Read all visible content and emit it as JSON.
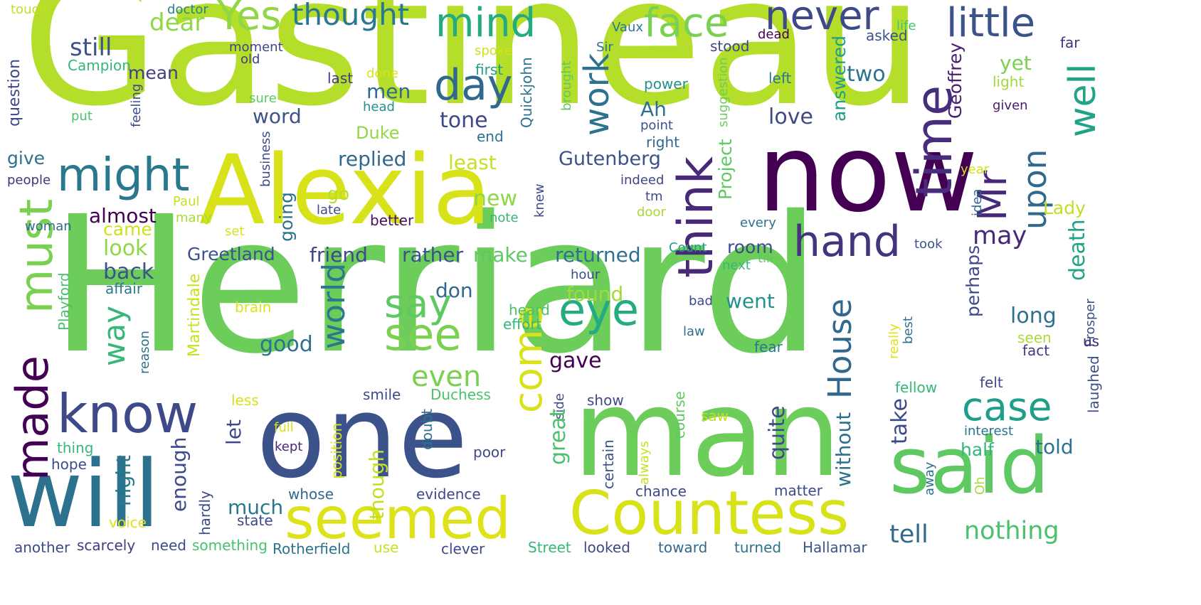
{
  "word_cloud": {
    "words": [
      {
        "text": "Gastineau",
        "color": "#b5de2b"
      },
      {
        "text": "Herriard",
        "color": "#6ccd5a"
      },
      {
        "text": "now",
        "color": "#440154"
      },
      {
        "text": "Alexia",
        "color": "#d8e219"
      },
      {
        "text": "one",
        "color": "#3b528b"
      },
      {
        "text": "man",
        "color": "#6ccd5a"
      },
      {
        "text": "will",
        "color": "#2c728e"
      },
      {
        "text": "said",
        "color": "#5ec962"
      },
      {
        "text": "Countess",
        "color": "#d8e219"
      },
      {
        "text": "seemed",
        "color": "#dde318"
      },
      {
        "text": "know",
        "color": "#3e4989"
      },
      {
        "text": "time",
        "color": "#472d7b"
      },
      {
        "text": "think",
        "color": "#482878"
      },
      {
        "text": "must",
        "color": "#7ad151"
      },
      {
        "text": "made",
        "color": "#440154"
      },
      {
        "text": "might",
        "color": "#2a788e"
      },
      {
        "text": "hand",
        "color": "#46337e"
      },
      {
        "text": "eye",
        "color": "#25ab82"
      },
      {
        "text": "see",
        "color": "#7ad151"
      },
      {
        "text": "say",
        "color": "#5ec962"
      },
      {
        "text": "come",
        "color": "#d8e219"
      },
      {
        "text": "day",
        "color": "#31688e"
      },
      {
        "text": "Yes",
        "color": "#8fd744"
      },
      {
        "text": "mind",
        "color": "#25ab82"
      },
      {
        "text": "face",
        "color": "#7ad151"
      },
      {
        "text": "never",
        "color": "#3e4989"
      },
      {
        "text": "little",
        "color": "#3b528b"
      },
      {
        "text": "thought",
        "color": "#2a788e"
      },
      {
        "text": "Mr",
        "color": "#482878"
      },
      {
        "text": "upon",
        "color": "#31688e"
      },
      {
        "text": "well",
        "color": "#20a386"
      },
      {
        "text": "case",
        "color": "#1f9e89"
      },
      {
        "text": "House",
        "color": "#31688e"
      },
      {
        "text": "world",
        "color": "#2a788e"
      },
      {
        "text": "way",
        "color": "#35b779"
      },
      {
        "text": "work",
        "color": "#2c728e"
      },
      {
        "text": "nothing",
        "color": "#4ac16d"
      },
      {
        "text": "tell",
        "color": "#31688e"
      },
      {
        "text": "even",
        "color": "#7ad151"
      },
      {
        "text": "dear",
        "color": "#8fd744"
      },
      {
        "text": "still",
        "color": "#3b528b"
      },
      {
        "text": "mean",
        "color": "#433e85"
      },
      {
        "text": "question",
        "color": "#3e4989"
      },
      {
        "text": "Campion",
        "color": "#35b779"
      },
      {
        "text": "touch",
        "color": "#c2df23"
      },
      {
        "text": "doctor",
        "color": "#25858e"
      },
      {
        "text": "moment",
        "color": "#414487"
      },
      {
        "text": "old",
        "color": "#433e85"
      },
      {
        "text": "spoke",
        "color": "#d0e11c"
      },
      {
        "text": "first",
        "color": "#1f9e89"
      },
      {
        "text": "done",
        "color": "#d8e219"
      },
      {
        "text": "last",
        "color": "#443983"
      },
      {
        "text": "Sir",
        "color": "#2c728e"
      },
      {
        "text": "Vaux",
        "color": "#2a788e"
      },
      {
        "text": "dead",
        "color": "#440154"
      },
      {
        "text": "stood",
        "color": "#404688"
      },
      {
        "text": "asked",
        "color": "#3b528b"
      },
      {
        "text": "life",
        "color": "#4ac16d"
      },
      {
        "text": "far",
        "color": "#46327e"
      },
      {
        "text": "left",
        "color": "#2a788e"
      },
      {
        "text": "two",
        "color": "#2c728e"
      },
      {
        "text": "yet",
        "color": "#7ad151"
      },
      {
        "text": "light",
        "color": "#9fda3a"
      },
      {
        "text": "given",
        "color": "#481b6d"
      },
      {
        "text": "power",
        "color": "#21918c"
      },
      {
        "text": "point",
        "color": "#3b528b"
      },
      {
        "text": "right",
        "color": "#31688e"
      },
      {
        "text": "Ah",
        "color": "#2c728e"
      },
      {
        "text": "love",
        "color": "#3e4989"
      },
      {
        "text": "answered",
        "color": "#1f9e89"
      },
      {
        "text": "Geoffrey",
        "color": "#481f70"
      },
      {
        "text": "suggestion",
        "color": "#6ccd5a"
      },
      {
        "text": "brought",
        "color": "#5ec962"
      },
      {
        "text": "Quickjohn",
        "color": "#2c728e"
      },
      {
        "text": "end",
        "color": "#2c728e"
      },
      {
        "text": "tone",
        "color": "#3e4989"
      },
      {
        "text": "men",
        "color": "#31688e"
      },
      {
        "text": "Duke",
        "color": "#8fd744"
      },
      {
        "text": "word",
        "color": "#3b528b"
      },
      {
        "text": "sure",
        "color": "#5ec962"
      },
      {
        "text": "head",
        "color": "#21918c"
      },
      {
        "text": "feeling",
        "color": "#3e4989"
      },
      {
        "text": "put",
        "color": "#4ac16d"
      },
      {
        "text": "give",
        "color": "#2c728e"
      },
      {
        "text": "people",
        "color": "#46337e"
      },
      {
        "text": "replied",
        "color": "#31688e"
      },
      {
        "text": "least",
        "color": "#c8e020"
      },
      {
        "text": "Gutenberg",
        "color": "#3b528b"
      },
      {
        "text": "indeed",
        "color": "#404688"
      },
      {
        "text": "tm",
        "color": "#3e4989"
      },
      {
        "text": "door",
        "color": "#a8db34"
      },
      {
        "text": "Project",
        "color": "#5ec962"
      },
      {
        "text": "every",
        "color": "#2c728e"
      },
      {
        "text": "year",
        "color": "#d0e11c"
      },
      {
        "text": "Lady",
        "color": "#c2df23"
      },
      {
        "text": "idea",
        "color": "#31688e"
      },
      {
        "text": "death",
        "color": "#20a386"
      },
      {
        "text": "may",
        "color": "#482878"
      },
      {
        "text": "room",
        "color": "#3e4989"
      },
      {
        "text": "took",
        "color": "#3b528b"
      },
      {
        "text": "till",
        "color": "#5ec962"
      },
      {
        "text": "next",
        "color": "#35b779"
      },
      {
        "text": "Count",
        "color": "#1f9e89"
      },
      {
        "text": "almost",
        "color": "#440154"
      },
      {
        "text": "came",
        "color": "#d0e11c"
      },
      {
        "text": "go",
        "color": "#b5de2b"
      },
      {
        "text": "new",
        "color": "#8fd744"
      },
      {
        "text": "going",
        "color": "#2c728e"
      },
      {
        "text": "late",
        "color": "#3e4989"
      },
      {
        "text": "better",
        "color": "#471063"
      },
      {
        "text": "note",
        "color": "#35b779"
      },
      {
        "text": "knew",
        "color": "#3e4989"
      },
      {
        "text": "business",
        "color": "#3e4989"
      },
      {
        "text": "Paul",
        "color": "#c8e020"
      },
      {
        "text": "many",
        "color": "#a8db34"
      },
      {
        "text": "woman",
        "color": "#31688e"
      },
      {
        "text": "set",
        "color": "#d8e219"
      },
      {
        "text": "look",
        "color": "#8fd744"
      },
      {
        "text": "Greetland",
        "color": "#3b528b"
      },
      {
        "text": "friend",
        "color": "#3e4989"
      },
      {
        "text": "rather",
        "color": "#3b528b"
      },
      {
        "text": "make",
        "color": "#5ec962"
      },
      {
        "text": "returned",
        "color": "#2c728e"
      },
      {
        "text": "perhaps",
        "color": "#3e4989"
      },
      {
        "text": "long",
        "color": "#2c728e"
      },
      {
        "text": "back",
        "color": "#3b528b"
      },
      {
        "text": "affair",
        "color": "#2a788e"
      },
      {
        "text": "Playford",
        "color": "#4ac16d"
      },
      {
        "text": "brain",
        "color": "#dde318"
      },
      {
        "text": "Martindale",
        "color": "#c8e020"
      },
      {
        "text": "found",
        "color": "#a0da39"
      },
      {
        "text": "don",
        "color": "#31688e"
      },
      {
        "text": "went",
        "color": "#21918c"
      },
      {
        "text": "hour",
        "color": "#3e4989"
      },
      {
        "text": "bad",
        "color": "#3e4989"
      },
      {
        "text": "law",
        "color": "#2c728e"
      },
      {
        "text": "heard",
        "color": "#4ac16d"
      },
      {
        "text": "effort",
        "color": "#35b779"
      },
      {
        "text": "good",
        "color": "#2c728e"
      },
      {
        "text": "gave",
        "color": "#440154"
      },
      {
        "text": "fear",
        "color": "#2a788e"
      },
      {
        "text": "seen",
        "color": "#a8db34"
      },
      {
        "text": "fact",
        "color": "#443983"
      },
      {
        "text": "best",
        "color": "#2c728e"
      },
      {
        "text": "really",
        "color": "#dde318"
      },
      {
        "text": "Prosper",
        "color": "#3b528b"
      },
      {
        "text": "us",
        "color": "#482878"
      },
      {
        "text": "reason",
        "color": "#2c728e"
      },
      {
        "text": "smile",
        "color": "#3e4989"
      },
      {
        "text": "Duchess",
        "color": "#4ac16d"
      },
      {
        "text": "show",
        "color": "#3e4989"
      },
      {
        "text": "side",
        "color": "#3e4989"
      },
      {
        "text": "fellow",
        "color": "#35b779"
      },
      {
        "text": "felt",
        "color": "#3e4989"
      },
      {
        "text": "laughed",
        "color": "#3b528b"
      },
      {
        "text": "less",
        "color": "#d8e219"
      },
      {
        "text": "full",
        "color": "#d8e219"
      },
      {
        "text": "doubt",
        "color": "#2c728e"
      },
      {
        "text": "course",
        "color": "#5ec962"
      },
      {
        "text": "saw",
        "color": "#c2df23"
      },
      {
        "text": "take",
        "color": "#3e4989"
      },
      {
        "text": "half",
        "color": "#35b779"
      },
      {
        "text": "told",
        "color": "#2c728e"
      },
      {
        "text": "interest",
        "color": "#2c728e"
      },
      {
        "text": "let",
        "color": "#3e4989"
      },
      {
        "text": "enough",
        "color": "#3e4989"
      },
      {
        "text": "thing",
        "color": "#35b779"
      },
      {
        "text": "hope",
        "color": "#3e4989"
      },
      {
        "text": "night",
        "color": "#2a788e"
      },
      {
        "text": "kept",
        "color": "#482878"
      },
      {
        "text": "much",
        "color": "#2a788e"
      },
      {
        "text": "position",
        "color": "#d8e219"
      },
      {
        "text": "poor",
        "color": "#3e4989"
      },
      {
        "text": "great",
        "color": "#4ac16d"
      },
      {
        "text": "though",
        "color": "#c2df23"
      },
      {
        "text": "quite",
        "color": "#3e4989"
      },
      {
        "text": "without",
        "color": "#2c728e"
      },
      {
        "text": "certain",
        "color": "#3b528b"
      },
      {
        "text": "always",
        "color": "#c8e020"
      },
      {
        "text": "away",
        "color": "#2c728e"
      },
      {
        "text": "Oh",
        "color": "#a8db34"
      },
      {
        "text": "whose",
        "color": "#31688e"
      },
      {
        "text": "evidence",
        "color": "#3e4989"
      },
      {
        "text": "chance",
        "color": "#3e4989"
      },
      {
        "text": "matter",
        "color": "#3e4989"
      },
      {
        "text": "hardly",
        "color": "#3e4989"
      },
      {
        "text": "voice",
        "color": "#dde318"
      },
      {
        "text": "state",
        "color": "#3e4989"
      },
      {
        "text": "another",
        "color": "#3e4989"
      },
      {
        "text": "scarcely",
        "color": "#443983"
      },
      {
        "text": "need",
        "color": "#3e4989"
      },
      {
        "text": "something",
        "color": "#4ac16d"
      },
      {
        "text": "use",
        "color": "#c8e020"
      },
      {
        "text": "Rotherfield",
        "color": "#2c728e"
      },
      {
        "text": "clever",
        "color": "#3e4989"
      },
      {
        "text": "Street",
        "color": "#35b779"
      },
      {
        "text": "looked",
        "color": "#3e4989"
      },
      {
        "text": "toward",
        "color": "#31688e"
      },
      {
        "text": "turned",
        "color": "#2c728e"
      },
      {
        "text": "Hallamar",
        "color": "#3b528b"
      }
    ]
  }
}
